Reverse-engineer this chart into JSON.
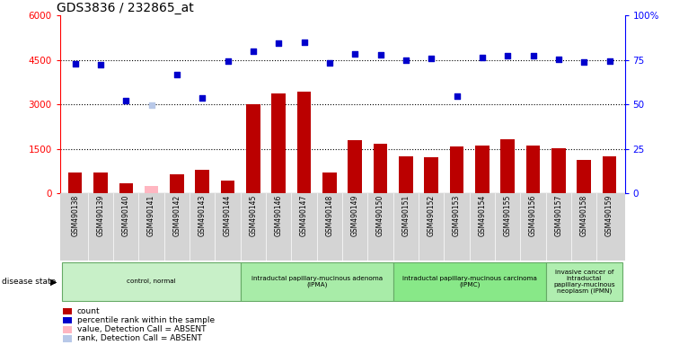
{
  "title": "GDS3836 / 232865_at",
  "samples": [
    "GSM490138",
    "GSM490139",
    "GSM490140",
    "GSM490141",
    "GSM490142",
    "GSM490143",
    "GSM490144",
    "GSM490145",
    "GSM490146",
    "GSM490147",
    "GSM490148",
    "GSM490149",
    "GSM490150",
    "GSM490151",
    "GSM490152",
    "GSM490153",
    "GSM490154",
    "GSM490155",
    "GSM490156",
    "GSM490157",
    "GSM490158",
    "GSM490159"
  ],
  "counts": [
    700,
    700,
    350,
    0,
    650,
    780,
    420,
    3000,
    3380,
    3420,
    700,
    1790,
    1680,
    1260,
    1220,
    1570,
    1620,
    1820,
    1610,
    1510,
    1130,
    1230
  ],
  "absent_count_val": [
    null,
    null,
    null,
    250,
    null,
    null,
    null,
    null,
    null,
    null,
    null,
    null,
    null,
    null,
    null,
    null,
    null,
    null,
    null,
    null,
    null,
    null
  ],
  "ranks_raw": [
    4360,
    4330,
    3130,
    0,
    4010,
    3230,
    4450,
    4800,
    5080,
    5100,
    4400,
    4700,
    4680,
    4480,
    4540,
    3290,
    4580,
    4650,
    4650,
    4520,
    4430,
    4460
  ],
  "absent_rank_raw": [
    null,
    null,
    null,
    2970,
    null,
    null,
    null,
    null,
    null,
    null,
    null,
    null,
    null,
    null,
    null,
    null,
    null,
    null,
    null,
    null,
    null,
    null
  ],
  "ylim_left": [
    0,
    6000
  ],
  "ylim_right": [
    0,
    100
  ],
  "yticks_left": [
    0,
    1500,
    3000,
    4500,
    6000
  ],
  "ytick_labels_left": [
    "0",
    "1500",
    "3000",
    "4500",
    "6000"
  ],
  "yticks_right_pct": [
    0,
    25,
    50,
    75,
    100
  ],
  "ytick_labels_right": [
    "0",
    "25",
    "50",
    "75",
    "100%"
  ],
  "bar_color": "#BB0000",
  "scatter_color": "#0000CC",
  "absent_bar_color": "#FFB6C1",
  "absent_rank_color": "#B8C8E8",
  "group_data": [
    {
      "label": "control, normal",
      "start": 0,
      "end": 6,
      "color": "#C8F0C8"
    },
    {
      "label": "intraductal papillary-mucinous adenoma\n(IPMA)",
      "start": 7,
      "end": 12,
      "color": "#A8ECA8"
    },
    {
      "label": "intraductal papillary-mucinous carcinoma\n(IPMC)",
      "start": 13,
      "end": 18,
      "color": "#88E888"
    },
    {
      "label": "invasive cancer of\nintraductal\npapillary-mucinous\nneoplasm (IPMN)",
      "start": 19,
      "end": 21,
      "color": "#B0EEB0"
    }
  ],
  "legend_labels": [
    "count",
    "percentile rank within the sample",
    "value, Detection Call = ABSENT",
    "rank, Detection Call = ABSENT"
  ],
  "legend_colors": [
    "#BB0000",
    "#0000CC",
    "#FFB6C1",
    "#B8C8E8"
  ],
  "sample_bg_color": "#D4D4D4",
  "sample_border_color": "#AAAAAA"
}
